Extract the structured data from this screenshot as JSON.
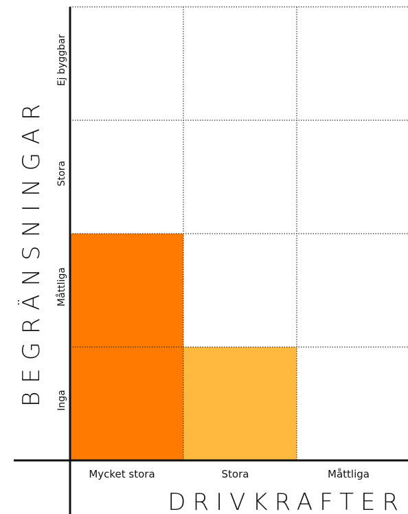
{
  "x_axis": {
    "title": "DRIVKRAFTER",
    "categories": [
      "Mycket stora",
      "Stora",
      "Måttliga"
    ]
  },
  "y_axis": {
    "title": "BEGRÄNSNINGAR",
    "categories_bottom_to_top": [
      "Inga",
      "Måttliga",
      "Stora",
      "Ej byggbar"
    ]
  },
  "colors": {
    "dark_orange": "#FF7A00",
    "light_orange": "#FFB93F",
    "axis": "#111111"
  },
  "filled_cells": [
    {
      "x": "Mycket stora",
      "y": "Inga",
      "color": "#FF7A00"
    },
    {
      "x": "Mycket stora",
      "y": "Måttliga",
      "color": "#FF7A00"
    },
    {
      "x": "Stora",
      "y": "Inga",
      "color": "#FFB93F"
    }
  ]
}
